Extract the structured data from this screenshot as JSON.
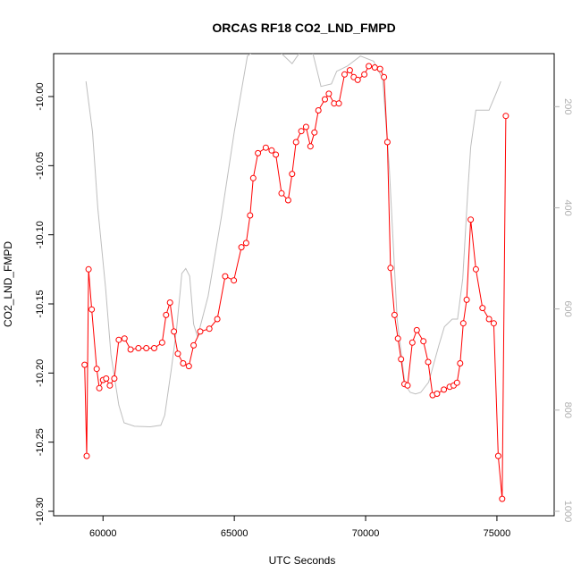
{
  "chart_data": {
    "type": "line",
    "title": "ORCAS RF18 CO2_LND_FMPD",
    "xlabel": "UTC Seconds",
    "ylabel": "CO2_LND_FMPD",
    "xlim": [
      58800,
      76500
    ],
    "ylim": [
      -10.3,
      -10.0
    ],
    "y2lim": [
      1000,
      150
    ],
    "x_ticks": [
      60000,
      65000,
      70000,
      75000
    ],
    "y_ticks": [
      -10.3,
      -10.25,
      -10.2,
      -10.15,
      -10.1,
      -10.05,
      -10.0
    ],
    "y_tick_labels": [
      "-10.30",
      "-10.25",
      "-10.20",
      "-10.15",
      "-10.10",
      "-10.05",
      "-10.00"
    ],
    "y2_ticks": [
      200,
      400,
      600,
      800,
      1000
    ],
    "colors": {
      "series": "#ff0000",
      "secondary": "#bebebe",
      "axes": "#000000"
    },
    "series": [
      {
        "color": "#ff0000",
        "marker": "open-circle",
        "x": [
          59300,
          59380,
          59450,
          59570,
          59760,
          59860,
          60000,
          60120,
          60260,
          60430,
          60600,
          60820,
          61050,
          61350,
          61650,
          61950,
          62250,
          62400,
          62550,
          62700,
          62850,
          63050,
          63270,
          63450,
          63700,
          64050,
          64350,
          64650,
          64980,
          65270,
          65450,
          65600,
          65720,
          65900,
          66200,
          66420,
          66580,
          66800,
          67050,
          67200,
          67350,
          67550,
          67730,
          67900,
          68050,
          68200,
          68450,
          68600,
          68800,
          68980,
          69200,
          69400,
          69550,
          69700,
          69950,
          70120,
          70350,
          70550,
          70700,
          70830,
          70950,
          71100,
          71230,
          71350,
          71480,
          71600,
          71780,
          71950,
          72200,
          72380,
          72550,
          72720,
          72980,
          73200,
          73350,
          73480,
          73600,
          73720,
          73850,
          74000,
          74200,
          74450,
          74700,
          74880,
          75050,
          75200,
          75340
        ],
        "y": [
          -10.194,
          -10.26,
          -10.125,
          -10.154,
          -10.197,
          -10.211,
          -10.205,
          -10.204,
          -10.209,
          -10.204,
          -10.176,
          -10.175,
          -10.183,
          -10.182,
          -10.182,
          -10.182,
          -10.178,
          -10.158,
          -10.149,
          -10.17,
          -10.186,
          -10.193,
          -10.195,
          -10.18,
          -10.17,
          -10.168,
          -10.161,
          -10.13,
          -10.133,
          -10.109,
          -10.106,
          -10.086,
          -10.059,
          -10.041,
          -10.037,
          -10.039,
          -10.042,
          -10.07,
          -10.075,
          -10.056,
          -10.033,
          -10.025,
          -10.022,
          -10.036,
          -10.026,
          -10.01,
          -10.002,
          -9.998,
          -10.005,
          -10.005,
          -9.984,
          -9.981,
          -9.986,
          -9.988,
          -9.984,
          -9.978,
          -9.979,
          -9.98,
          -9.986,
          -10.033,
          -10.124,
          -10.158,
          -10.175,
          -10.19,
          -10.208,
          -10.209,
          -10.178,
          -10.169,
          -10.177,
          -10.192,
          -10.216,
          -10.215,
          -10.212,
          -10.21,
          -10.209,
          -10.207,
          -10.193,
          -10.164,
          -10.147,
          -10.089,
          -10.125,
          -10.153,
          -10.161,
          -10.164,
          -10.26,
          -10.291,
          -10.014
        ]
      },
      {
        "color": "#bebebe",
        "axis": "right",
        "x": [
          59350,
          59600,
          59800,
          60100,
          60300,
          60600,
          60800,
          61200,
          61800,
          62200,
          62350,
          62600,
          62800,
          62950,
          63000,
          63150,
          63300,
          63450,
          63600,
          64000,
          64500,
          65000,
          65500,
          66000,
          66500,
          66800,
          67200,
          67600,
          67900,
          68300,
          68700,
          68900,
          69300,
          69800,
          70300,
          70650,
          70900,
          71200,
          71500,
          71700,
          71900,
          72100,
          72400,
          72800,
          73000,
          73300,
          73500,
          73700,
          73900,
          74000,
          74200,
          74700,
          75000,
          75150
        ],
        "y": [
          150,
          250,
          400,
          560,
          690,
          790,
          825,
          832,
          833,
          830,
          810,
          720,
          640,
          560,
          530,
          520,
          535,
          630,
          655,
          575,
          420,
          250,
          100,
          80,
          75,
          95,
          115,
          85,
          75,
          160,
          155,
          130,
          120,
          100,
          110,
          145,
          320,
          620,
          750,
          765,
          768,
          765,
          745,
          670,
          635,
          620,
          620,
          540,
          360,
          280,
          207,
          207,
          170,
          150
        ]
      }
    ]
  }
}
